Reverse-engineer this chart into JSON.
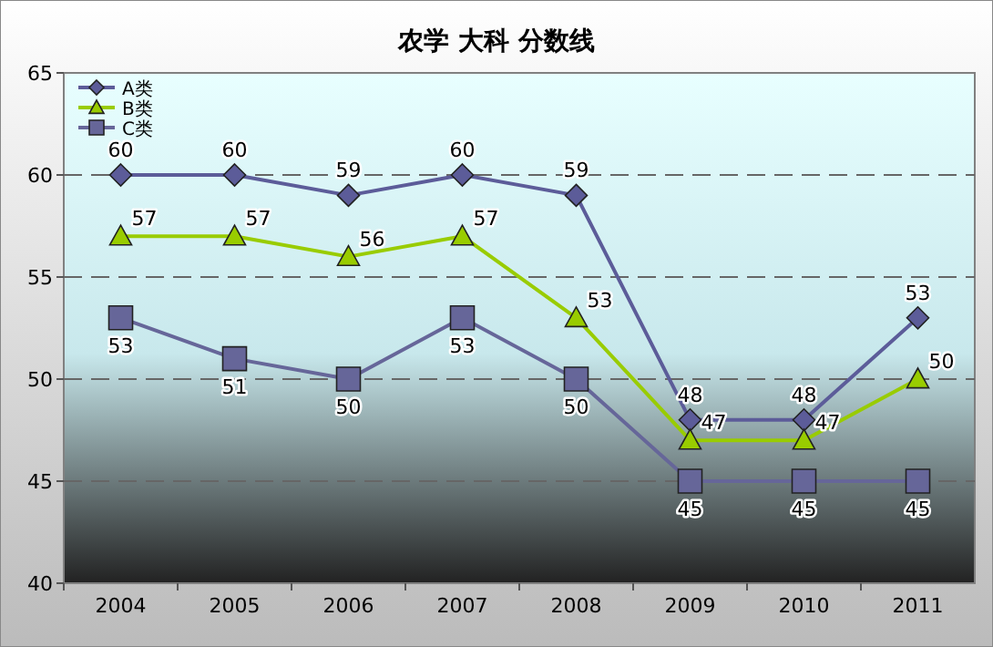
{
  "chart_data": {
    "type": "line",
    "title": "农学    大科    分数线",
    "categories": [
      "2004",
      "2005",
      "2006",
      "2007",
      "2008",
      "2009",
      "2010",
      "2011"
    ],
    "series": [
      {
        "name": "A类",
        "color": "#5c5c99",
        "marker": "diamond",
        "values": [
          60,
          60,
          59,
          60,
          59,
          48,
          48,
          53
        ]
      },
      {
        "name": "B类",
        "color": "#99cc00",
        "marker": "triangle",
        "values": [
          57,
          57,
          56,
          57,
          53,
          47,
          47,
          50
        ]
      },
      {
        "name": "C类",
        "color": "#666699",
        "marker": "square",
        "values": [
          53,
          51,
          50,
          53,
          50,
          45,
          45,
          45
        ]
      }
    ],
    "ylim": [
      40,
      65
    ],
    "yticks": [
      40,
      45,
      50,
      55,
      60,
      65
    ],
    "grid": "y",
    "legend": "top left",
    "data_labels": true
  }
}
